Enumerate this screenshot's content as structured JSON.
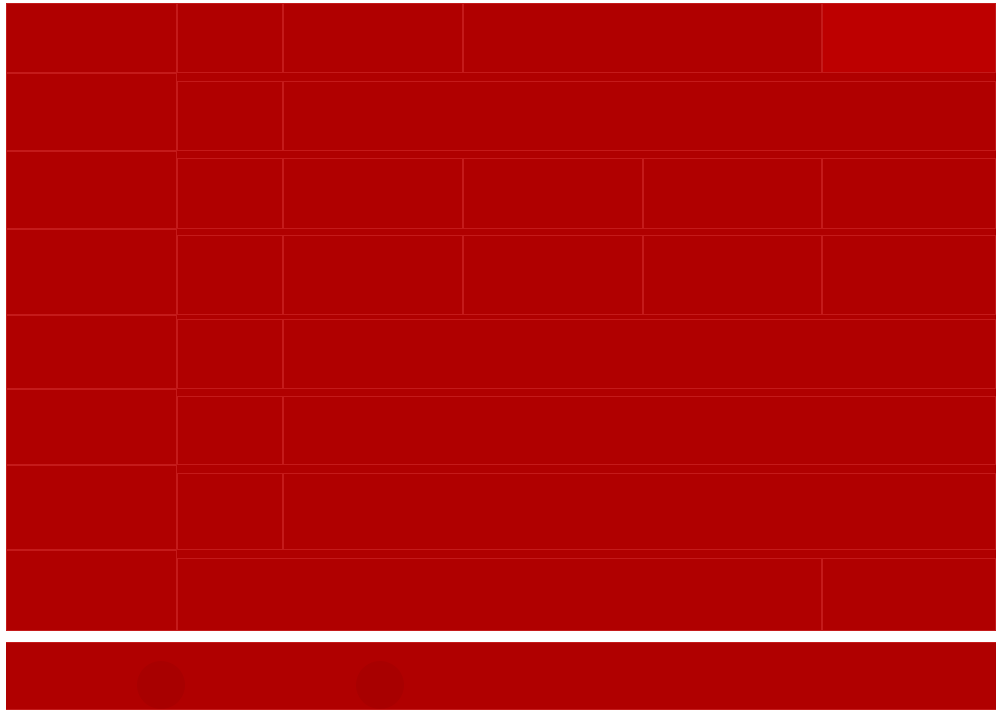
{
  "grid": {
    "cells": [
      "",
      "",
      "",
      "",
      "",
      "",
      "",
      "",
      "",
      "",
      "",
      "",
      "",
      "",
      "",
      "",
      "",
      "",
      "",
      "",
      "",
      "",
      "",
      "",
      "",
      "",
      "",
      "",
      "",
      ""
    ]
  },
  "bottom_bar": {
    "button_left_label": "",
    "button_right_label": ""
  },
  "colors": {
    "background": "#b00000",
    "border": "#c41a1a",
    "button": "#a80000",
    "page": "#ffffff"
  }
}
